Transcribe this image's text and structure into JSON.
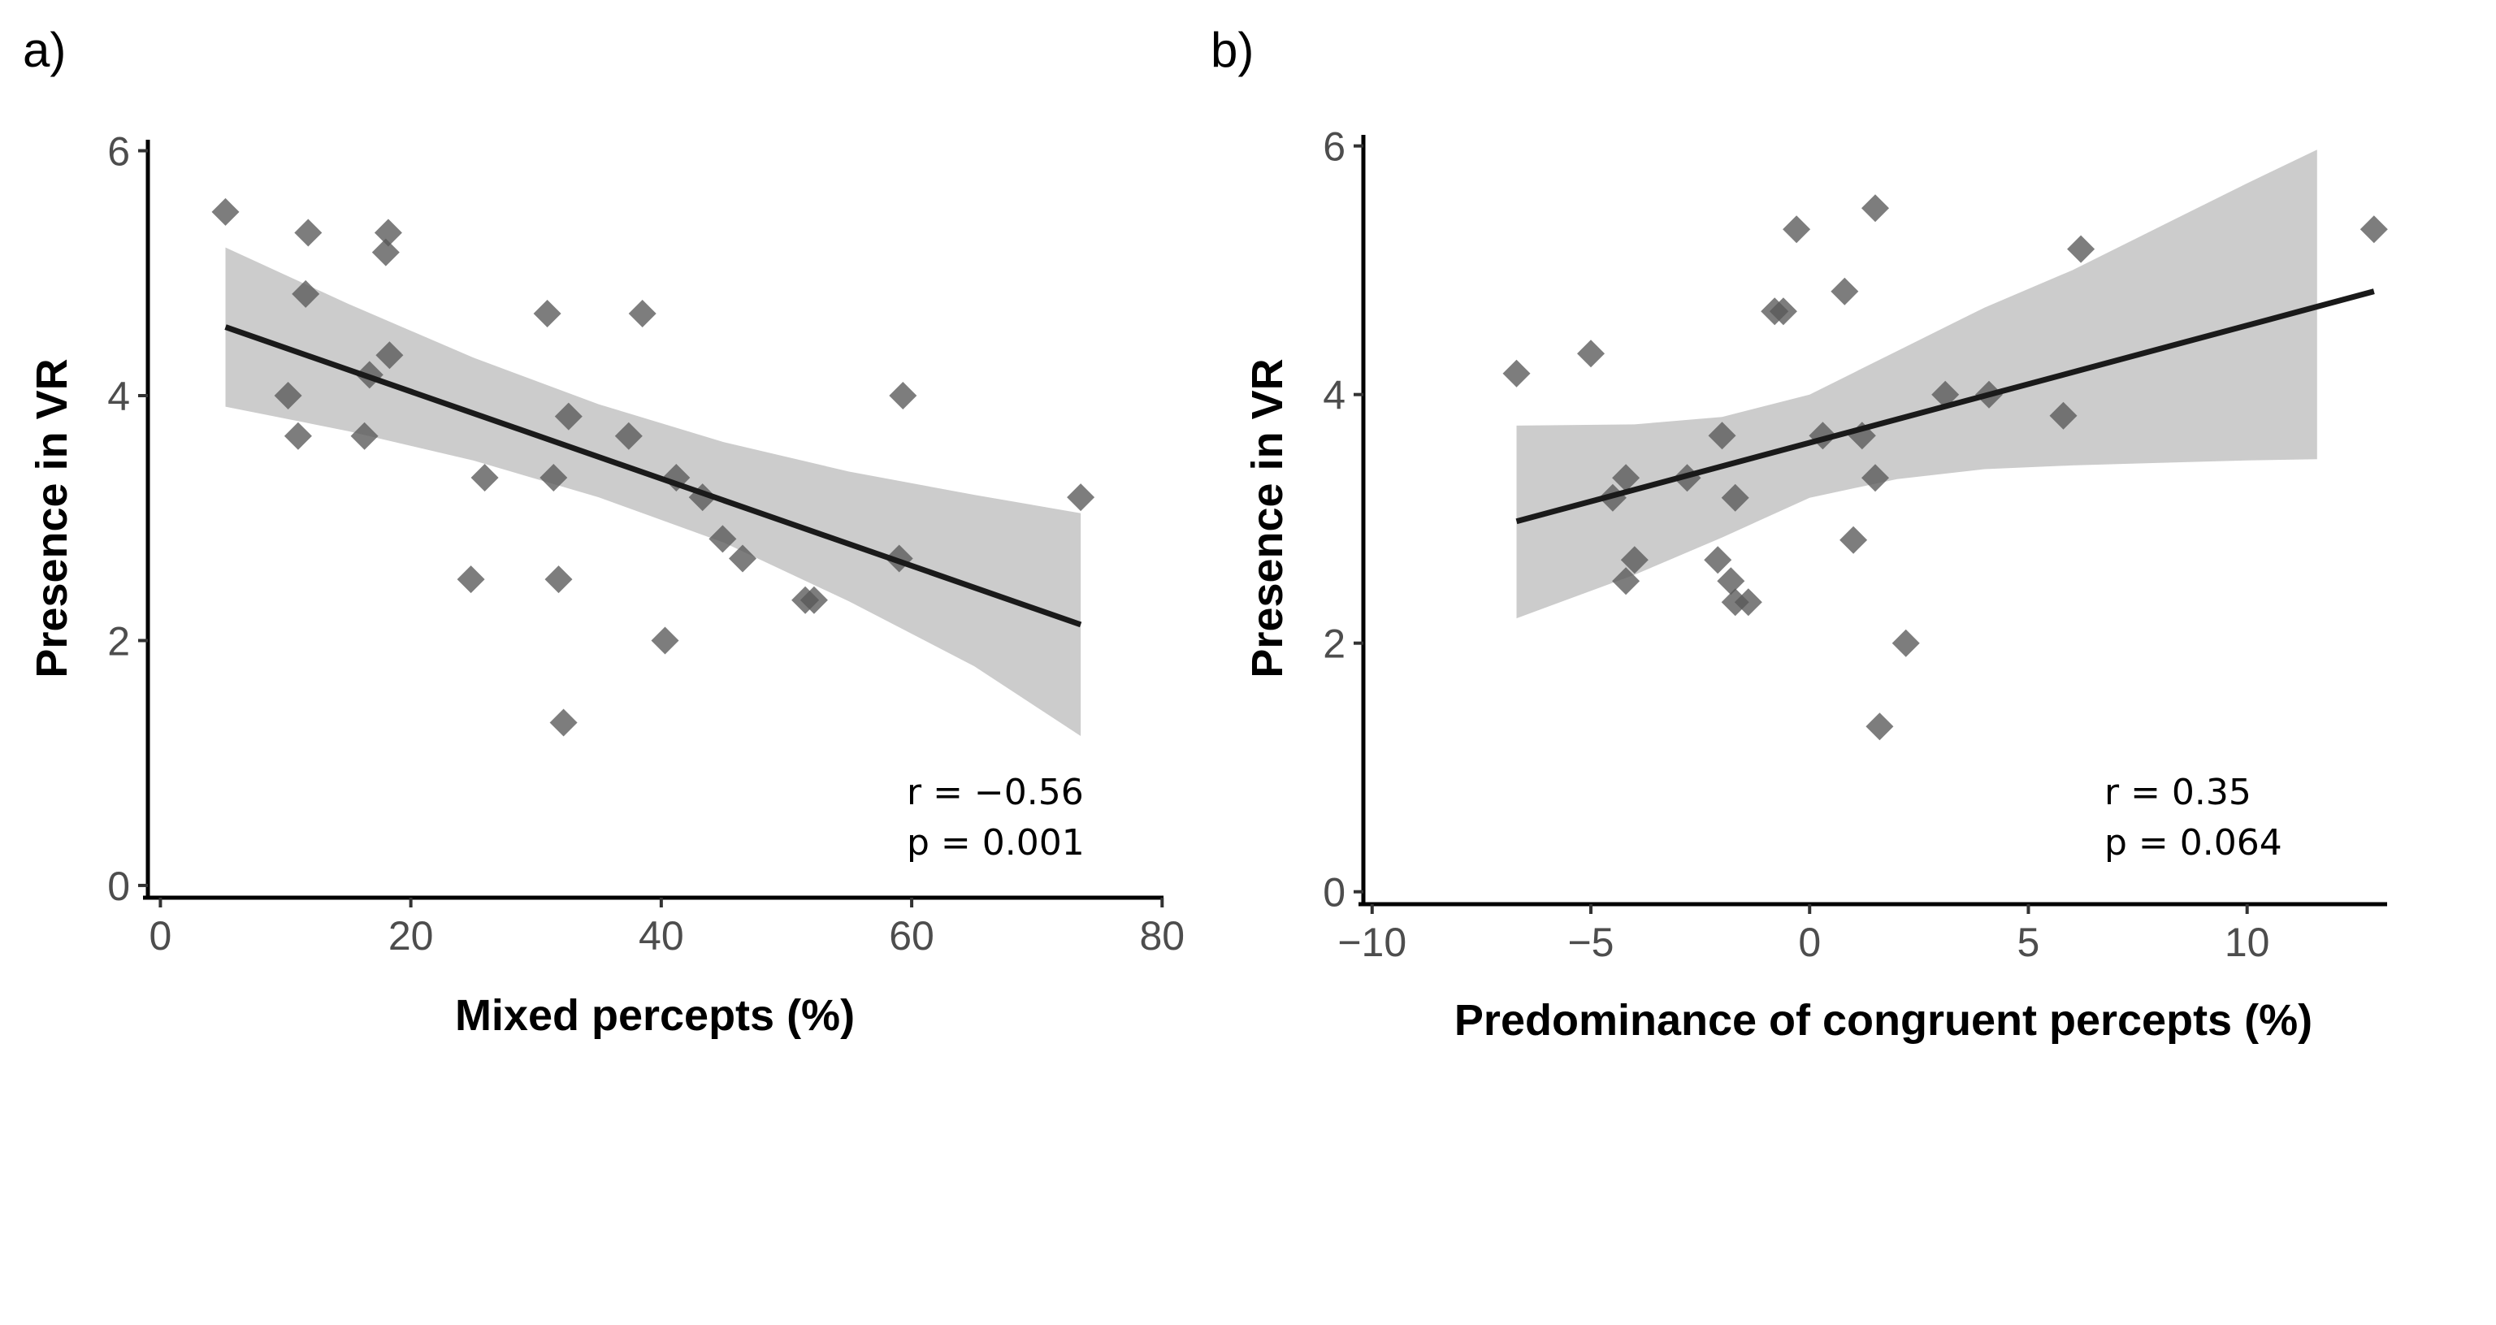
{
  "chart_data": [
    {
      "type": "scatter",
      "panel_label": "a)",
      "xlabel": "Mixed percepts (%)",
      "ylabel": "Presence in VR",
      "xlim": [
        -1,
        80.5
      ],
      "ylim": [
        -0.1,
        6.05
      ],
      "xticks": [
        0,
        20,
        40,
        60,
        80
      ],
      "yticks": [
        0,
        2,
        4,
        6
      ],
      "xtick_labels": [
        "0",
        "20",
        "40",
        "60",
        "80"
      ],
      "ytick_labels": [
        "0",
        "2",
        "4",
        "6"
      ],
      "stats": [
        "r = −0.56",
        "p = 0.001"
      ],
      "grid": false,
      "marker": "diamond",
      "points": [
        {
          "x": 5.2,
          "y": 5.5
        },
        {
          "x": 11.8,
          "y": 5.33
        },
        {
          "x": 11.6,
          "y": 4.83
        },
        {
          "x": 18.2,
          "y": 5.33
        },
        {
          "x": 18.0,
          "y": 5.17
        },
        {
          "x": 10.2,
          "y": 4.0
        },
        {
          "x": 11.0,
          "y": 3.67
        },
        {
          "x": 16.7,
          "y": 4.17
        },
        {
          "x": 18.3,
          "y": 4.33
        },
        {
          "x": 16.3,
          "y": 3.67
        },
        {
          "x": 25.9,
          "y": 3.33
        },
        {
          "x": 24.8,
          "y": 2.5
        },
        {
          "x": 30.9,
          "y": 4.67
        },
        {
          "x": 38.5,
          "y": 4.67
        },
        {
          "x": 32.6,
          "y": 3.83
        },
        {
          "x": 31.4,
          "y": 3.33
        },
        {
          "x": 31.8,
          "y": 2.5
        },
        {
          "x": 32.2,
          "y": 1.33
        },
        {
          "x": 37.4,
          "y": 3.67
        },
        {
          "x": 41.2,
          "y": 3.33
        },
        {
          "x": 43.3,
          "y": 3.17
        },
        {
          "x": 44.9,
          "y": 2.83
        },
        {
          "x": 46.5,
          "y": 2.67
        },
        {
          "x": 40.3,
          "y": 2.0
        },
        {
          "x": 51.5,
          "y": 2.33
        },
        {
          "x": 52.2,
          "y": 2.33
        },
        {
          "x": 59.0,
          "y": 2.67
        },
        {
          "x": 59.3,
          "y": 4.0
        },
        {
          "x": 73.5,
          "y": 3.17
        }
      ],
      "fit": {
        "x0": 5.2,
        "y0": 4.56,
        "x1": 73.5,
        "y1": 2.13
      },
      "band": {
        "x": [
          5.2,
          15,
          25,
          35,
          45,
          55,
          65,
          73.5
        ],
        "upper": [
          5.21,
          4.75,
          4.31,
          3.93,
          3.62,
          3.38,
          3.19,
          3.04
        ],
        "lower": [
          3.91,
          3.71,
          3.47,
          3.17,
          2.8,
          2.32,
          1.79,
          1.22
        ]
      },
      "colors": {
        "points": "#595959",
        "band": "#cccccc",
        "line": "#1a1a1a"
      }
    },
    {
      "type": "scatter",
      "panel_label": "b)",
      "xlabel": "Predominance of congruent percepts (%)",
      "ylabel": "Presence in VR",
      "xlim": [
        -10.2,
        13.2
      ],
      "ylim": [
        -0.1,
        6.05
      ],
      "xticks": [
        -10,
        -5,
        0,
        5,
        10
      ],
      "yticks": [
        0,
        2,
        4,
        6
      ],
      "xtick_labels": [
        "−10",
        "−5",
        "0",
        "5",
        "10"
      ],
      "ytick_labels": [
        "0",
        "2",
        "4",
        "6"
      ],
      "stats": [
        "r = 0.35",
        "p = 0.064"
      ],
      "grid": false,
      "marker": "diamond",
      "points": [
        {
          "x": -6.7,
          "y": 4.17
        },
        {
          "x": -5.0,
          "y": 4.33
        },
        {
          "x": -4.5,
          "y": 3.17
        },
        {
          "x": -4.2,
          "y": 3.33
        },
        {
          "x": -4.0,
          "y": 2.67
        },
        {
          "x": -4.2,
          "y": 2.5
        },
        {
          "x": -2.8,
          "y": 3.33
        },
        {
          "x": -2.0,
          "y": 3.67
        },
        {
          "x": -2.1,
          "y": 2.67
        },
        {
          "x": -1.7,
          "y": 3.17
        },
        {
          "x": -1.8,
          "y": 2.5
        },
        {
          "x": -1.7,
          "y": 2.33
        },
        {
          "x": -1.4,
          "y": 2.33
        },
        {
          "x": -0.8,
          "y": 4.67
        },
        {
          "x": -0.6,
          "y": 4.67
        },
        {
          "x": -0.3,
          "y": 5.33
        },
        {
          "x": 0.3,
          "y": 3.67
        },
        {
          "x": 0.8,
          "y": 4.83
        },
        {
          "x": 1.0,
          "y": 2.83
        },
        {
          "x": 1.2,
          "y": 3.67
        },
        {
          "x": 1.5,
          "y": 3.33
        },
        {
          "x": 1.5,
          "y": 5.5
        },
        {
          "x": 1.6,
          "y": 1.33
        },
        {
          "x": 2.2,
          "y": 2.0
        },
        {
          "x": 3.1,
          "y": 4.0
        },
        {
          "x": 4.1,
          "y": 4.0
        },
        {
          "x": 5.8,
          "y": 3.83
        },
        {
          "x": 6.2,
          "y": 5.17
        },
        {
          "x": 12.9,
          "y": 5.33
        }
      ],
      "fit": {
        "x0": -6.7,
        "y0": 2.98,
        "x1": 12.9,
        "y1": 4.83
      },
      "band": {
        "x": [
          -6.7,
          -4,
          -2,
          0,
          2,
          4,
          6,
          8,
          10,
          11.6
        ],
        "upper": [
          3.75,
          3.76,
          3.82,
          4.0,
          4.35,
          4.7,
          5.0,
          5.35,
          5.7,
          5.97
        ],
        "lower": [
          2.2,
          2.55,
          2.85,
          3.17,
          3.32,
          3.4,
          3.43,
          3.45,
          3.47,
          3.48
        ]
      },
      "colors": {
        "points": "#595959",
        "band": "#cccccc",
        "line": "#1a1a1a"
      }
    }
  ]
}
